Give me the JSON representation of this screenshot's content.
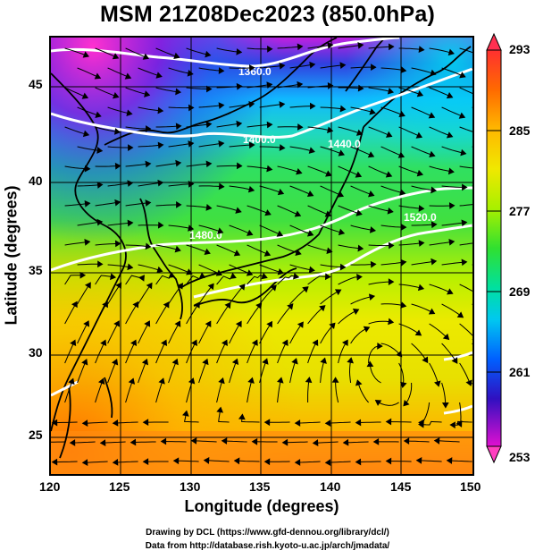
{
  "title": "MSM 21Z08Dec2023 (850.0hPa)",
  "xlabel": "Longitude (degrees)",
  "ylabel": "Latitude  (degrees)",
  "credits": {
    "line1": "Drawing by DCL (https://www.gfd-dennou.org/library/dcl/)",
    "line2": "Data from http://database.rish.kyoto-u.ac.jp/arch/jmadata/"
  },
  "x_ticks": [
    "120",
    "125",
    "130",
    "135",
    "140",
    "145",
    "150"
  ],
  "y_ticks": [
    "25",
    "30",
    "35",
    "40",
    "45"
  ],
  "colorbar": {
    "labels": [
      "293",
      "285",
      "277",
      "269",
      "261",
      "253"
    ],
    "range": [
      253,
      293
    ],
    "colors": [
      "#ff2a6d",
      "#ff6a00",
      "#ffc800",
      "#d6f000",
      "#38e000",
      "#00dcc0",
      "#0060ff",
      "#2a20c8",
      "#c000e0"
    ]
  },
  "contour_labels": [
    "1360.0",
    "1400.0",
    "1440.0",
    "1480.0",
    "1520.0"
  ],
  "map": {
    "lon_range": [
      120,
      150
    ],
    "lat_range": [
      22.5,
      48
    ],
    "field": "temperature (K) with geopotential height contours and wind streamlines"
  }
}
